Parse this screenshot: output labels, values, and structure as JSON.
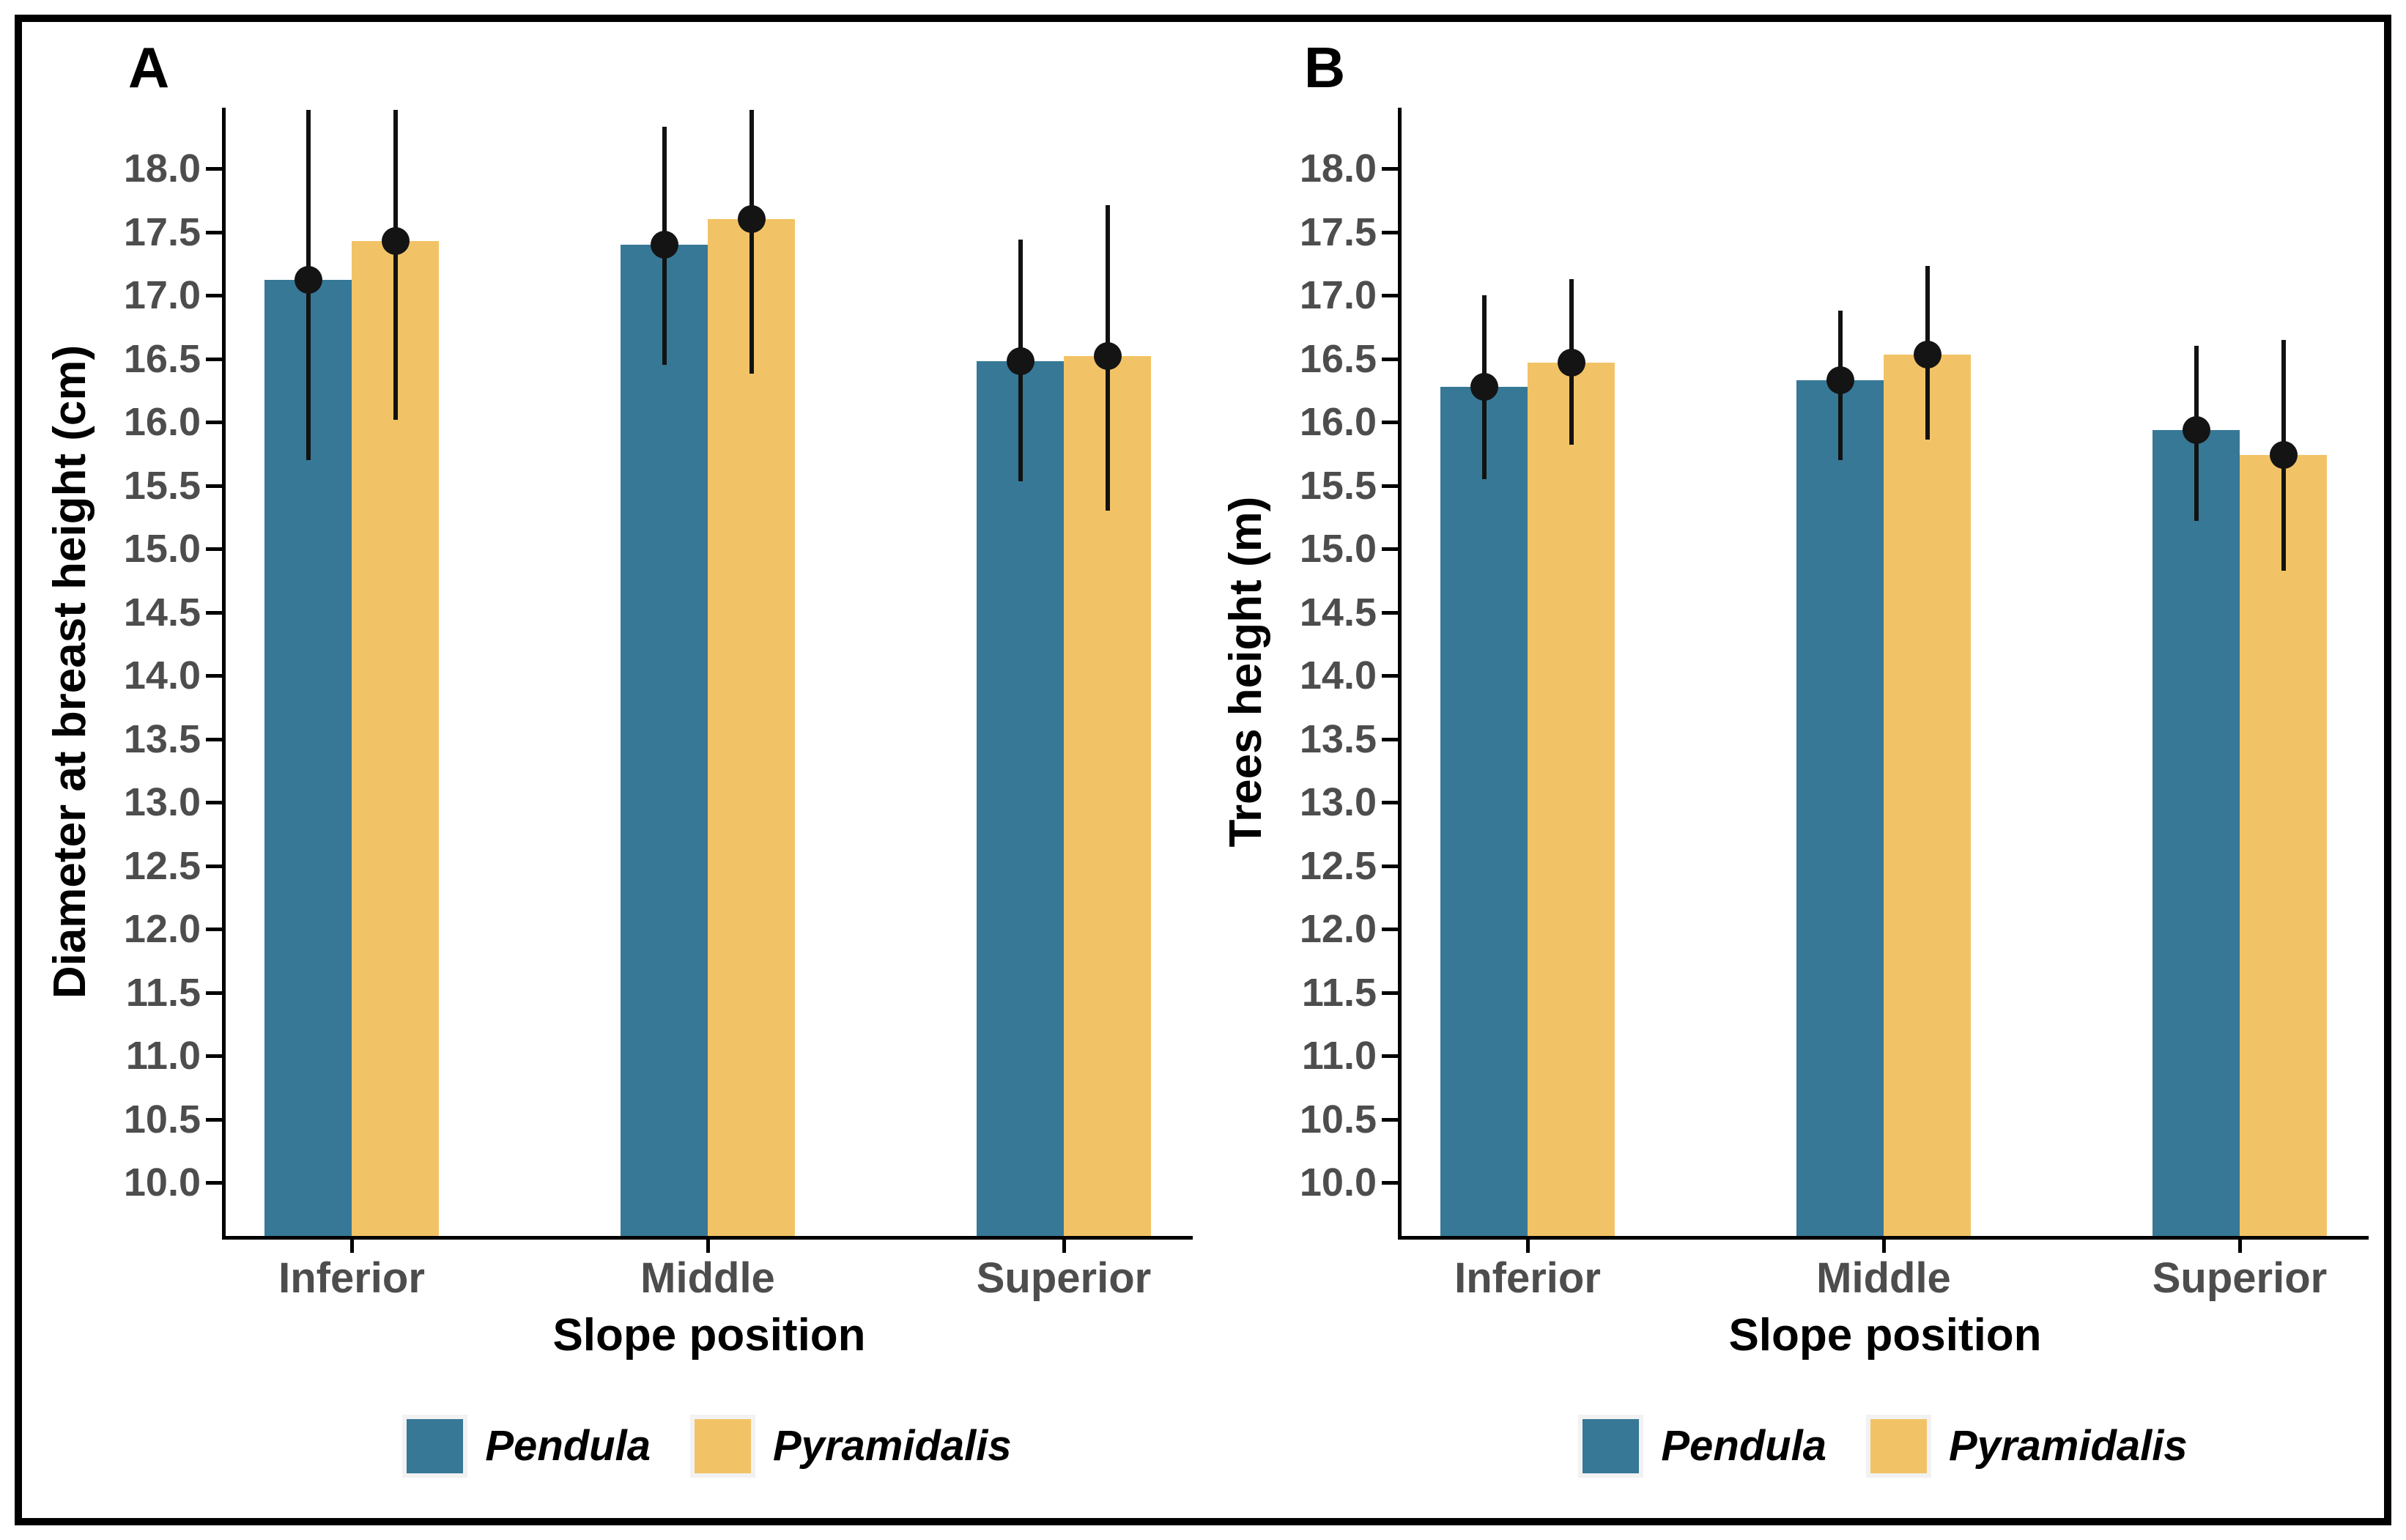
{
  "figure": {
    "background": "#ffffff",
    "border_color": "#000000"
  },
  "chart_data": [
    {
      "type": "bar",
      "panel_label": "A",
      "ylabel": "Diameter at breast height (cm)",
      "xlabel": "Slope position",
      "categories": [
        "Inferior",
        "Middle",
        "Superior"
      ],
      "ytick_labels": [
        "10.0",
        "10.5",
        "11.0",
        "11.5",
        "12.0",
        "12.5",
        "13.0",
        "13.5",
        "14.0",
        "14.5",
        "15.0",
        "15.5",
        "16.0",
        "16.5",
        "17.0",
        "17.5",
        "18.0"
      ],
      "ylim": [
        9.58,
        18.48
      ],
      "grid": false,
      "error_bars": true,
      "points": true,
      "legend_position": "bottom",
      "series": [
        {
          "name": "Pendula",
          "color": "#377897",
          "means": [
            17.12,
            17.4,
            16.48
          ],
          "ci_low": [
            15.7,
            16.45,
            15.53
          ],
          "ci_high": [
            18.46,
            18.33,
            17.44
          ]
        },
        {
          "name": "Pyramidalis",
          "color": "#f2c366",
          "means": [
            17.43,
            17.6,
            16.52
          ],
          "ci_low": [
            16.02,
            16.38,
            15.3
          ],
          "ci_high": [
            18.46,
            18.46,
            17.71
          ]
        }
      ],
      "legend": {
        "items": [
          {
            "label": "Pendula",
            "color": "#377897"
          },
          {
            "label": "Pyramidalis",
            "color": "#f2c366"
          }
        ]
      }
    },
    {
      "type": "bar",
      "panel_label": "B",
      "ylabel": "Trees height (m)",
      "xlabel": "Slope position",
      "categories": [
        "Inferior",
        "Middle",
        "Superior"
      ],
      "ytick_labels": [
        "10.0",
        "10.5",
        "11.0",
        "11.5",
        "12.0",
        "12.5",
        "13.0",
        "13.5",
        "14.0",
        "14.5",
        "15.0",
        "15.5",
        "16.0",
        "16.5",
        "17.0",
        "17.5",
        "18.0"
      ],
      "ylim": [
        9.58,
        18.48
      ],
      "grid": false,
      "error_bars": true,
      "points": true,
      "legend_position": "bottom",
      "series": [
        {
          "name": "Pendula",
          "color": "#377897",
          "means": [
            16.28,
            16.33,
            15.94
          ],
          "ci_low": [
            15.55,
            15.7,
            15.22
          ],
          "ci_high": [
            17.0,
            16.88,
            16.6
          ]
        },
        {
          "name": "Pyramidalis",
          "color": "#f2c366",
          "means": [
            16.47,
            16.53,
            15.74
          ],
          "ci_low": [
            15.82,
            15.86,
            14.83
          ],
          "ci_high": [
            17.13,
            17.23,
            16.65
          ]
        }
      ],
      "legend": {
        "items": [
          {
            "label": "Pendula",
            "color": "#377897"
          },
          {
            "label": "Pyramidalis",
            "color": "#f2c366"
          }
        ]
      }
    }
  ]
}
